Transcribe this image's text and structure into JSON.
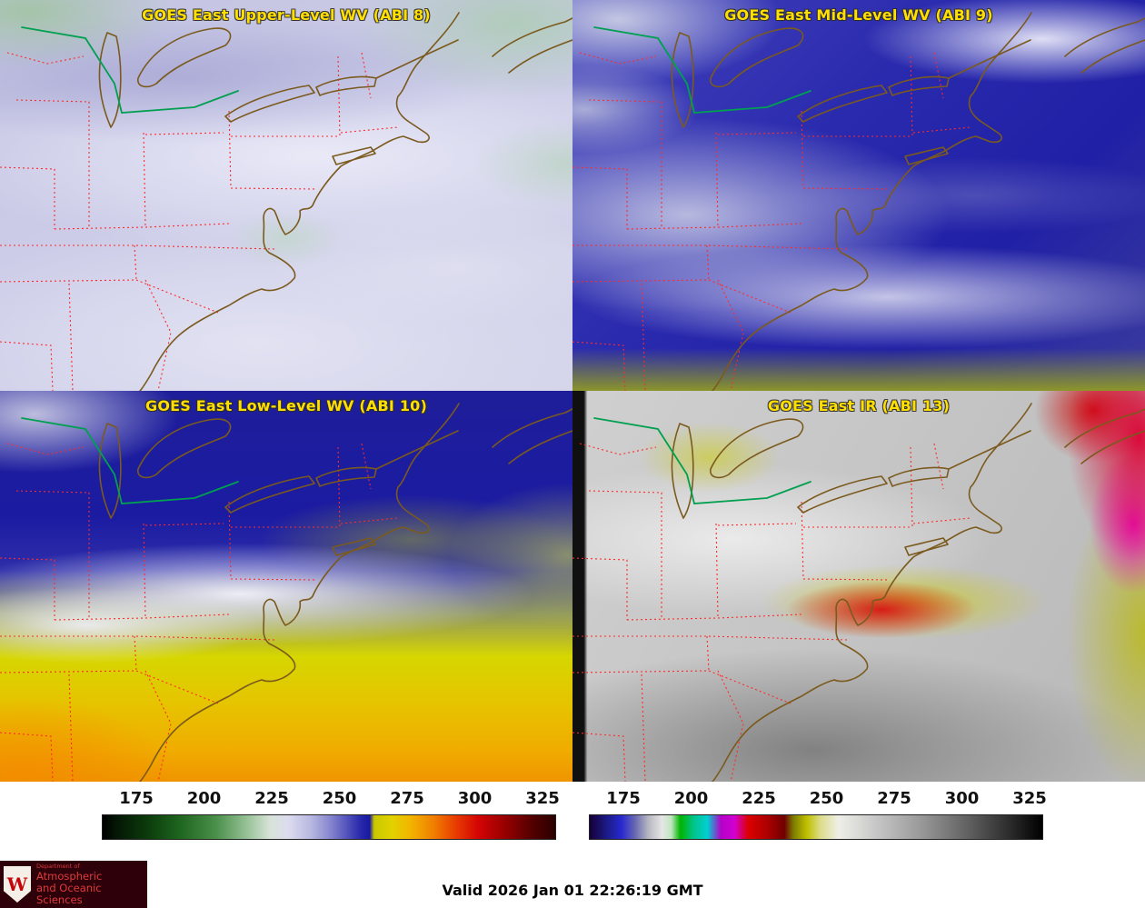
{
  "panels": [
    {
      "id": "upper-wv",
      "title": "GOES East Upper-Level WV (ABI 8)"
    },
    {
      "id": "mid-wv",
      "title": "GOES East Mid-Level WV (ABI 9)"
    },
    {
      "id": "low-wv",
      "title": "GOES East Low-Level WV (ABI 10)"
    },
    {
      "id": "ir",
      "title": "GOES East IR (ABI 13)"
    }
  ],
  "title_color": "#ffdf00",
  "colorbars": {
    "wv": {
      "ticks": [
        "175",
        "200",
        "225",
        "250",
        "275",
        "300",
        "325"
      ],
      "stops": [
        {
          "p": 0,
          "c": "#000000"
        },
        {
          "p": 3,
          "c": "#051605"
        },
        {
          "p": 10,
          "c": "#0c3c0c"
        },
        {
          "p": 17,
          "c": "#1e651e"
        },
        {
          "p": 25,
          "c": "#4a8f4a"
        },
        {
          "p": 32,
          "c": "#98c298"
        },
        {
          "p": 37,
          "c": "#d8e3d8"
        },
        {
          "p": 41,
          "c": "#dcdcf0"
        },
        {
          "p": 46,
          "c": "#b8b8e1"
        },
        {
          "p": 50,
          "c": "#8a8ad0"
        },
        {
          "p": 54,
          "c": "#5252bc"
        },
        {
          "p": 57,
          "c": "#2828aa"
        },
        {
          "p": 59,
          "c": "#1818a2"
        },
        {
          "p": 60,
          "c": "#c8c800"
        },
        {
          "p": 64,
          "c": "#e2d200"
        },
        {
          "p": 68,
          "c": "#f2b400"
        },
        {
          "p": 73,
          "c": "#f08000"
        },
        {
          "p": 78,
          "c": "#e83c00"
        },
        {
          "p": 83,
          "c": "#d40404"
        },
        {
          "p": 89,
          "c": "#960000"
        },
        {
          "p": 95,
          "c": "#520000"
        },
        {
          "p": 100,
          "c": "#2b0000"
        }
      ]
    },
    "ir": {
      "ticks": [
        "175",
        "200",
        "225",
        "250",
        "275",
        "300",
        "325"
      ],
      "stops": [
        {
          "p": 0,
          "c": "#150038"
        },
        {
          "p": 4,
          "c": "#1c1c8c"
        },
        {
          "p": 7,
          "c": "#2828d0"
        },
        {
          "p": 10,
          "c": "#6868b2"
        },
        {
          "p": 13,
          "c": "#b8b8c2"
        },
        {
          "p": 16,
          "c": "#e6e6e6"
        },
        {
          "p": 18,
          "c": "#c0e6c0"
        },
        {
          "p": 20,
          "c": "#00b400"
        },
        {
          "p": 23,
          "c": "#00c48c"
        },
        {
          "p": 26,
          "c": "#00d0d0"
        },
        {
          "p": 29,
          "c": "#b400c8"
        },
        {
          "p": 32,
          "c": "#d200d2"
        },
        {
          "p": 35,
          "c": "#dc0000"
        },
        {
          "p": 39,
          "c": "#b00000"
        },
        {
          "p": 43,
          "c": "#700000"
        },
        {
          "p": 45,
          "c": "#7c7c00"
        },
        {
          "p": 48,
          "c": "#c0c000"
        },
        {
          "p": 51,
          "c": "#dcdc8c"
        },
        {
          "p": 55,
          "c": "#efefe8"
        },
        {
          "p": 63,
          "c": "#c8c8c8"
        },
        {
          "p": 73,
          "c": "#9a9a9a"
        },
        {
          "p": 83,
          "c": "#646464"
        },
        {
          "p": 93,
          "c": "#2a2a2a"
        },
        {
          "p": 100,
          "c": "#000000"
        }
      ]
    }
  },
  "map": {
    "state_border_color": "#ff2a2a",
    "coastline_color": "#7b5a1e",
    "route_color": "#00a050"
  },
  "footer": {
    "valid_time": "Valid 2026 Jan 01 22:26:19 GMT"
  },
  "logo": {
    "monogram": "W",
    "department": "Department of",
    "line1": "Atmospheric",
    "line2": "and Oceanic Sciences"
  }
}
